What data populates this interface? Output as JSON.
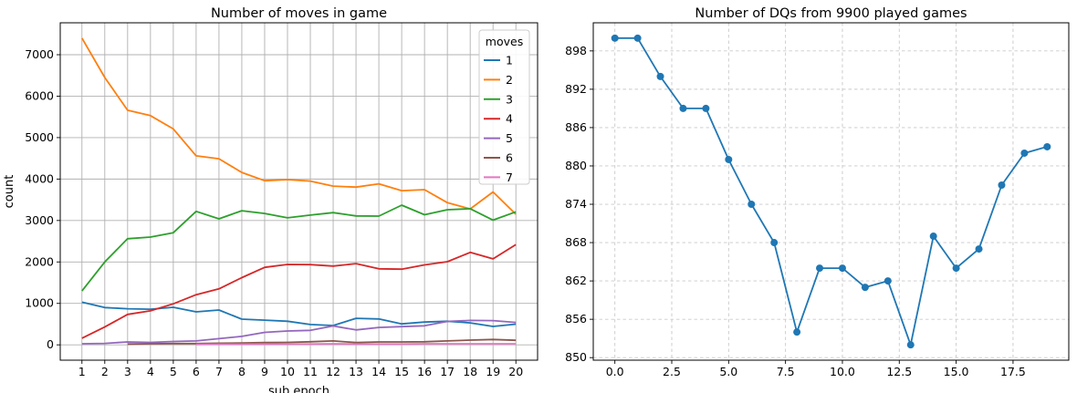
{
  "figure": {
    "background": "#ffffff"
  },
  "chart_data": [
    {
      "type": "line",
      "title": "Number of moves in game",
      "xlabel": "sub epoch",
      "ylabel": "count",
      "legend_title": "moves",
      "legend_position": "upper right",
      "grid": "solid",
      "grid_color": "#b0b0b0",
      "xlim": [
        0.05,
        20.95
      ],
      "ylim": [
        -370,
        7770
      ],
      "xticks": [
        1,
        2,
        3,
        4,
        5,
        6,
        7,
        8,
        9,
        10,
        11,
        12,
        13,
        14,
        15,
        16,
        17,
        18,
        19,
        20
      ],
      "yticks": [
        0,
        1000,
        2000,
        3000,
        4000,
        5000,
        6000,
        7000
      ],
      "x": [
        1,
        2,
        3,
        4,
        5,
        6,
        7,
        8,
        9,
        10,
        11,
        12,
        13,
        14,
        15,
        16,
        17,
        18,
        19,
        20
      ],
      "series": [
        {
          "name": "1",
          "color": "#1f77b4",
          "values": [
            1030,
            900,
            870,
            860,
            905,
            795,
            840,
            620,
            595,
            570,
            490,
            465,
            640,
            625,
            505,
            550,
            570,
            530,
            445,
            500
          ]
        },
        {
          "name": "2",
          "color": "#ff7f0e",
          "values": [
            7400,
            6450,
            5660,
            5530,
            5210,
            4560,
            4490,
            4160,
            3960,
            3985,
            3950,
            3830,
            3805,
            3885,
            3720,
            3745,
            3430,
            3280,
            3690,
            3150
          ]
        },
        {
          "name": "3",
          "color": "#2ca02c",
          "values": [
            1300,
            2000,
            2560,
            2600,
            2705,
            3220,
            3040,
            3235,
            3170,
            3065,
            3130,
            3190,
            3110,
            3105,
            3370,
            3140,
            3260,
            3285,
            3010,
            3210
          ]
        },
        {
          "name": "4",
          "color": "#d62728",
          "values": [
            160,
            430,
            735,
            820,
            990,
            1210,
            1350,
            1620,
            1870,
            1940,
            1935,
            1900,
            1960,
            1835,
            1825,
            1930,
            2005,
            2230,
            2075,
            2420
          ]
        },
        {
          "name": "5",
          "color": "#9467bd",
          "values": [
            25,
            35,
            70,
            60,
            80,
            95,
            150,
            205,
            300,
            335,
            350,
            455,
            360,
            420,
            440,
            460,
            565,
            590,
            585,
            540
          ]
        },
        {
          "name": "6",
          "color": "#8c564b",
          "values": [
            null,
            null,
            20,
            25,
            30,
            30,
            40,
            45,
            55,
            60,
            75,
            95,
            55,
            70,
            70,
            75,
            95,
            115,
            130,
            110
          ]
        },
        {
          "name": "7",
          "color": "#e377c2",
          "values": [
            null,
            null,
            null,
            null,
            null,
            10,
            15,
            15,
            20,
            20,
            20,
            25,
            20,
            20,
            20,
            25,
            25,
            25,
            25,
            25
          ]
        }
      ]
    },
    {
      "type": "line",
      "title": "Number of DQs from 9900 played games",
      "xlabel": "",
      "ylabel": "",
      "grid": "dashed",
      "grid_color": "#c9c9c9",
      "marker": "o",
      "xlim": [
        -0.95,
        19.95
      ],
      "ylim": [
        9849.6,
        9902.4
      ],
      "xticks": [
        0,
        2.5,
        5,
        7.5,
        10,
        12.5,
        15,
        17.5
      ],
      "xtick_labels": [
        "0.0",
        "2.5",
        "5.0",
        "7.5",
        "10.0",
        "12.5",
        "15.0",
        "17.5"
      ],
      "yticks": [
        9850,
        9856,
        9862,
        9868,
        9874,
        9880,
        9886,
        9892,
        9898
      ],
      "x": [
        0,
        1,
        2,
        3,
        4,
        5,
        6,
        7,
        8,
        9,
        10,
        11,
        12,
        13,
        14,
        15,
        16,
        17,
        18,
        19
      ],
      "series": [
        {
          "name": "DQs",
          "color": "#1f77b4",
          "values": [
            9900,
            9900,
            9894,
            9889,
            9889,
            9881,
            9874,
            9868,
            9854,
            9864,
            9864,
            9861,
            9862,
            9852,
            9869,
            9864,
            9867,
            9877,
            9882,
            9883
          ]
        }
      ]
    }
  ]
}
